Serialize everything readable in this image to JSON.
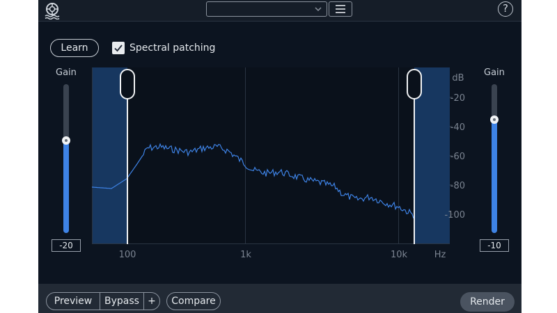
{
  "header": {
    "logo_icon": "lifebuoy-waves-icon",
    "preset_value": "",
    "menu_icon": "hamburger-menu-icon",
    "help_label": "?"
  },
  "controls": {
    "learn_label": "Learn",
    "spectral_patching_label": "Spectral patching",
    "spectral_patching_checked": true
  },
  "left_gain": {
    "label": "Gain",
    "value": "-20",
    "level": 0.62
  },
  "right_gain": {
    "label": "Gain",
    "value": "-10",
    "level": 0.76
  },
  "spectrum": {
    "db_unit": "dB",
    "db_ticks": [
      "-20",
      "-40",
      "-60",
      "-80",
      "-100"
    ],
    "hz_ticks": [
      "100",
      "1k",
      "10k"
    ],
    "hz_unit": "Hz",
    "low_handle_hz": 100,
    "high_handle_hz": 13000,
    "accent": "#3e83e6"
  },
  "footer": {
    "preview_label": "Preview",
    "bypass_label": "Bypass",
    "plus_label": "+",
    "compare_label": "Compare",
    "render_label": "Render"
  }
}
